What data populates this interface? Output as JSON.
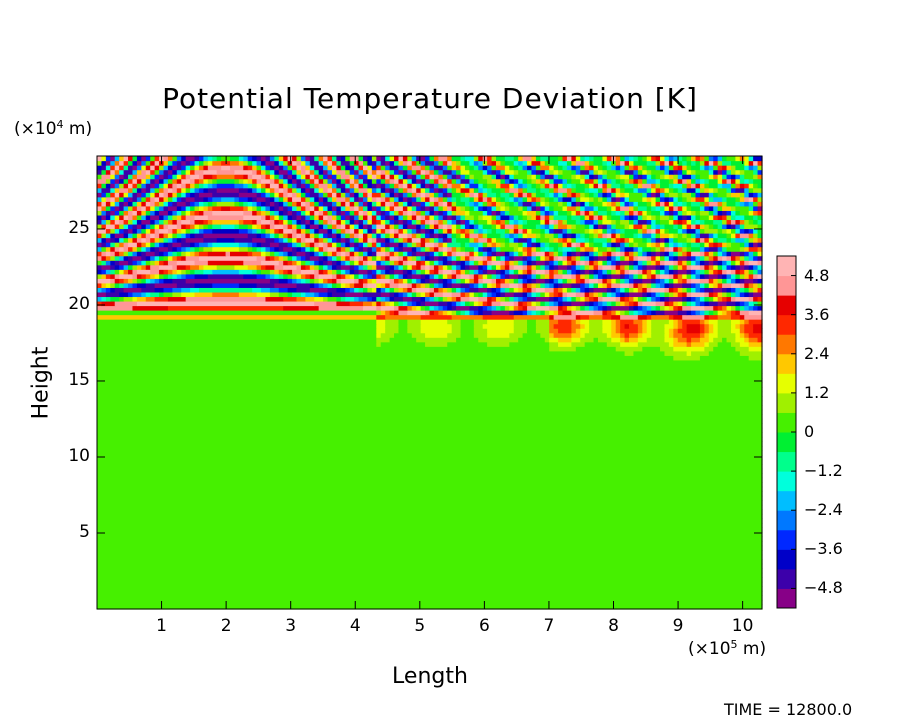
{
  "chart_data": {
    "type": "heatmap",
    "title": "Potential Temperature Deviation [K]",
    "xlabel": "Length",
    "ylabel": "Height",
    "x_unit_prefix": "(×10",
    "x_unit_exp": "5",
    "x_unit_suffix": " m)",
    "y_unit_prefix": "(×10",
    "y_unit_exp": "4",
    "y_unit_suffix": " m)",
    "xlim": [
      0,
      10.3
    ],
    "ylim": [
      0,
      29.8
    ],
    "x_ticks": [
      {
        "value": 1,
        "label": "1"
      },
      {
        "value": 2,
        "label": "2"
      },
      {
        "value": 3,
        "label": "3"
      },
      {
        "value": 4,
        "label": "4"
      },
      {
        "value": 5,
        "label": "5"
      },
      {
        "value": 6,
        "label": "6"
      },
      {
        "value": 7,
        "label": "7"
      },
      {
        "value": 8,
        "label": "8"
      },
      {
        "value": 9,
        "label": "9"
      },
      {
        "value": 10,
        "label": "10"
      }
    ],
    "y_ticks": [
      {
        "value": 5,
        "label": "5"
      },
      {
        "value": 10,
        "label": "10"
      },
      {
        "value": 15,
        "label": "15"
      },
      {
        "value": 20,
        "label": "20"
      },
      {
        "value": 25,
        "label": "25"
      }
    ],
    "colorbar": {
      "min": -5.4,
      "max": 5.4,
      "colors": [
        "#870087",
        "#3c00aa",
        "#0000c8",
        "#0028ff",
        "#0078ff",
        "#00beff",
        "#00ffdc",
        "#00ff8c",
        "#00f032",
        "#46f000",
        "#a0f000",
        "#e6ff00",
        "#ffc800",
        "#ff7800",
        "#ff2800",
        "#e60000",
        "#ff9696",
        "#ffb4b4"
      ],
      "ticks": [
        {
          "value": 4.8,
          "label": "4.8"
        },
        {
          "value": 3.6,
          "label": "3.6"
        },
        {
          "value": 2.4,
          "label": "2.4"
        },
        {
          "value": 1.2,
          "label": "1.2"
        },
        {
          "value": 0,
          "label": "0"
        },
        {
          "value": -1.2,
          "label": "−1.2"
        },
        {
          "value": -2.4,
          "label": "−2.4"
        },
        {
          "value": -3.6,
          "label": "−3.6"
        },
        {
          "value": -4.8,
          "label": "−4.8"
        }
      ]
    },
    "field_description_values": {
      "tropopause_height": 19.5,
      "upper_layer_band_amplitude": 5.0,
      "lower_layer_value": 0.2
    }
  },
  "time_label": "TIME  =  12800.0"
}
